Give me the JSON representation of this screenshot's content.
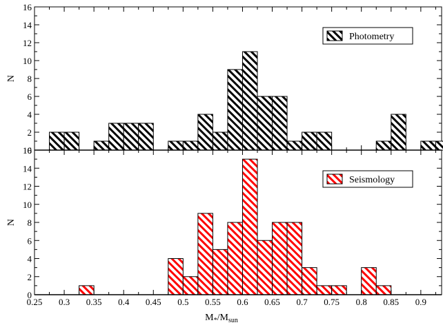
{
  "chart_data": {
    "type": "bar",
    "xlabel": "M*/Msun",
    "xlabel_main": "M",
    "xlabel_sub1": "*",
    "xlabel_mid": "/M",
    "xlabel_sub2": "sun",
    "xlim": [
      0.25,
      0.935
    ],
    "bin_width": 0.025,
    "x_ticks": [
      0.25,
      0.3,
      0.35,
      0.4,
      0.45,
      0.5,
      0.55,
      0.6,
      0.65,
      0.7,
      0.75,
      0.8,
      0.85,
      0.9
    ],
    "x_tick_labels": [
      "0.25",
      "0.3",
      "0.35",
      "0.4",
      "0.45",
      "0.5",
      "0.55",
      "0.6",
      "0.65",
      "0.7",
      "0.75",
      "0.8",
      "0.85",
      "0.9"
    ],
    "panels": [
      {
        "legend": "Photometry",
        "color": "#000000",
        "ylabel": "N",
        "ylim": [
          0,
          16
        ],
        "y_ticks": [
          0,
          2,
          4,
          6,
          8,
          10,
          12,
          14,
          16
        ],
        "y_tick_labels": [
          "0",
          "2",
          "4",
          "6",
          "8",
          "10",
          "12",
          "14",
          "16"
        ],
        "bins": [
          {
            "left": 0.275,
            "count": 2
          },
          {
            "left": 0.3,
            "count": 2
          },
          {
            "left": 0.35,
            "count": 1
          },
          {
            "left": 0.375,
            "count": 3
          },
          {
            "left": 0.4,
            "count": 3
          },
          {
            "left": 0.425,
            "count": 3
          },
          {
            "left": 0.475,
            "count": 1
          },
          {
            "left": 0.5,
            "count": 1
          },
          {
            "left": 0.525,
            "count": 4
          },
          {
            "left": 0.55,
            "count": 2
          },
          {
            "left": 0.575,
            "count": 9
          },
          {
            "left": 0.6,
            "count": 11
          },
          {
            "left": 0.625,
            "count": 6
          },
          {
            "left": 0.65,
            "count": 6
          },
          {
            "left": 0.675,
            "count": 1
          },
          {
            "left": 0.7,
            "count": 2
          },
          {
            "left": 0.725,
            "count": 2
          },
          {
            "left": 0.825,
            "count": 1
          },
          {
            "left": 0.85,
            "count": 4
          },
          {
            "left": 0.9,
            "count": 1
          },
          {
            "left": 0.925,
            "count": 1
          }
        ]
      },
      {
        "legend": "Seismology",
        "color": "#ff0000",
        "ylabel": "N",
        "ylim": [
          0,
          16
        ],
        "y_ticks": [
          0,
          2,
          4,
          6,
          8,
          10,
          12,
          14,
          16
        ],
        "y_tick_labels": [
          "0",
          "2",
          "4",
          "6",
          "8",
          "10",
          "12",
          "14",
          "16"
        ],
        "bins": [
          {
            "left": 0.325,
            "count": 1
          },
          {
            "left": 0.475,
            "count": 4
          },
          {
            "left": 0.5,
            "count": 2
          },
          {
            "left": 0.525,
            "count": 9
          },
          {
            "left": 0.55,
            "count": 5
          },
          {
            "left": 0.575,
            "count": 8
          },
          {
            "left": 0.6,
            "count": 15
          },
          {
            "left": 0.625,
            "count": 6
          },
          {
            "left": 0.65,
            "count": 8
          },
          {
            "left": 0.675,
            "count": 8
          },
          {
            "left": 0.7,
            "count": 3
          },
          {
            "left": 0.725,
            "count": 1
          },
          {
            "left": 0.75,
            "count": 1
          },
          {
            "left": 0.8,
            "count": 3
          },
          {
            "left": 0.825,
            "count": 1
          }
        ]
      }
    ]
  }
}
